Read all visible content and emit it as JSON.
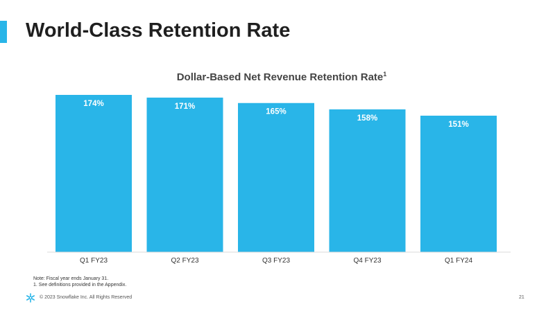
{
  "slide": {
    "title": "World-Class Retention Rate",
    "page_number": "21"
  },
  "colors": {
    "accent": "#29b5e8",
    "bar": "#29b5e8",
    "title": "#1f1f1f"
  },
  "chart_data": {
    "type": "bar",
    "title": "Dollar-Based Net Revenue Retention Rate",
    "title_superscript": "1",
    "categories": [
      "Q1 FY23",
      "Q2 FY23",
      "Q3 FY23",
      "Q4 FY23",
      "Q1 FY24"
    ],
    "values": [
      174,
      171,
      165,
      158,
      151
    ],
    "value_labels": [
      "174%",
      "171%",
      "165%",
      "158%",
      "151%"
    ],
    "xlabel": "",
    "ylabel": "",
    "ylim": [
      0,
      174
    ],
    "grid": false,
    "legend": "none"
  },
  "footnotes": [
    "Note: Fiscal year ends January 31.",
    "1.  See definitions provided in the Appendix."
  ],
  "footer": {
    "logo_icon": "snowflake-icon",
    "copyright": "© 2023 Snowflake Inc. All Rights Reserved"
  }
}
